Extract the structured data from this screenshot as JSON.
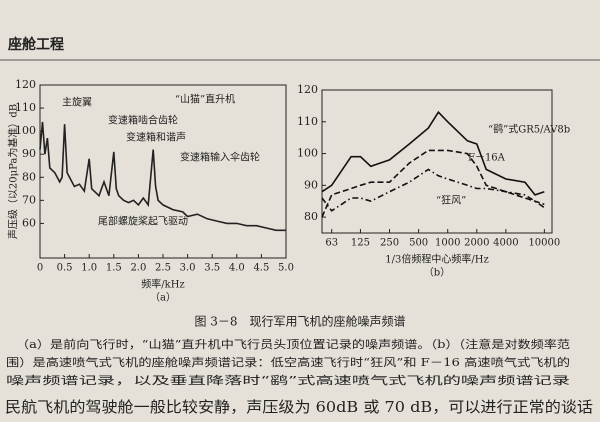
{
  "header": {
    "title": "座舱工程"
  },
  "chart_data": [
    {
      "type": "line",
      "title": "“山猫”直升机",
      "subtitle": "（a）",
      "x_label": "频率/kHz",
      "y_label": "声压级（以20μPa为基准）dB",
      "annotations": [
        "主旋翼",
        "变速箱啮合齿轮",
        "变速箱和谐声",
        "变速箱输入伞齿轮",
        "尾部螺旋桨起飞驱动"
      ],
      "x": [
        0,
        0.05,
        0.1,
        0.15,
        0.2,
        0.3,
        0.4,
        0.45,
        0.5,
        0.55,
        0.6,
        0.7,
        0.8,
        0.9,
        1.0,
        1.05,
        1.1,
        1.2,
        1.3,
        1.4,
        1.5,
        1.55,
        1.6,
        1.7,
        1.8,
        1.9,
        2.0,
        2.1,
        2.2,
        2.3,
        2.35,
        2.4,
        2.5,
        2.7,
        2.9,
        3.0,
        3.2,
        3.4,
        3.6,
        3.8,
        4.0,
        4.2,
        4.4,
        4.6,
        4.8,
        5.0
      ],
      "series": [
        {
          "name": "“山猫”直升机",
          "color": "#222222",
          "style": "solid",
          "values": [
            92,
            104,
            90,
            97,
            84,
            82,
            78,
            80,
            103,
            82,
            80,
            76,
            77,
            74,
            88,
            75,
            74,
            72,
            78,
            72,
            91,
            75,
            72,
            70,
            69,
            70,
            68,
            71,
            68,
            92,
            76,
            70,
            68,
            66,
            65,
            63,
            64,
            62,
            61,
            60,
            60,
            59,
            59,
            58,
            57,
            57
          ]
        }
      ],
      "xlim": [
        0,
        5
      ],
      "xticks": [
        0,
        0.5,
        {
          "value": 1,
          "label": "1.0"
        },
        1.5,
        {
          "value": 2,
          "label": "2.0"
        },
        2.5,
        {
          "value": 3,
          "label": "3.0"
        },
        3.5,
        {
          "value": 4,
          "label": "4.0"
        },
        4.5,
        {
          "value": 5,
          "label": "5.0"
        }
      ],
      "ylim": [
        45,
        120
      ],
      "yticks": [
        60,
        70,
        80,
        90,
        100,
        110,
        120
      ],
      "log_x": false
    },
    {
      "type": "line",
      "subtitle": "（b）",
      "x_label": "1/3倍频程中心频率/Hz",
      "x": [
        50,
        63,
        100,
        125,
        160,
        250,
        400,
        630,
        800,
        1000,
        1600,
        2000,
        2500,
        4000,
        6300,
        8000,
        10000
      ],
      "series": [
        {
          "name": "“鹞”式GR5/AV8b",
          "color": "#111111",
          "style": "solid",
          "values": [
            88,
            90,
            99,
            99,
            96,
            98,
            103,
            108,
            113,
            110,
            104,
            103,
            95,
            92,
            91,
            87,
            88
          ]
        },
        {
          "name": "F－16A",
          "color": "#111111",
          "style": "dashed",
          "values": [
            80,
            87,
            89,
            90,
            91,
            91,
            97,
            101,
            101,
            101,
            100,
            96,
            90,
            88,
            86,
            85,
            84
          ]
        },
        {
          "name": "“狂风”",
          "color": "#111111",
          "style": "dashdot",
          "values": [
            86,
            82,
            86,
            86,
            85,
            88,
            91,
            95,
            93,
            92,
            90,
            89,
            89,
            88,
            87,
            85,
            83
          ]
        }
      ],
      "xlim": [
        50,
        12000
      ],
      "xticks": [
        63,
        125,
        250,
        500,
        1000,
        2000,
        4000,
        10000
      ],
      "ylim": [
        75,
        120
      ],
      "yticks": [
        80,
        90,
        100,
        110,
        120
      ],
      "log_x": true
    }
  ],
  "caption": "图 3－8　现行军用飞机的座舱噪声频谱",
  "notes": [
    "（a）是前向飞行时，“山猫”直升机中飞行员头顶位置记录的噪声频谱。（b）（注意是对数频率范",
    "围）是高速喷气式飞机的座舱噪声频谱记录：低空高速飞行时“狂风”和 F－16 高速喷气式飞机的",
    "噪声频谱记录，以及垂直降落时“鹞”式高速喷气式飞机的噪声频谱记录"
  ],
  "body": "民航飞机的驾驶舱一般比较安静，声压级为 60dB 或 70 dB，可以进行正常的谈话"
}
